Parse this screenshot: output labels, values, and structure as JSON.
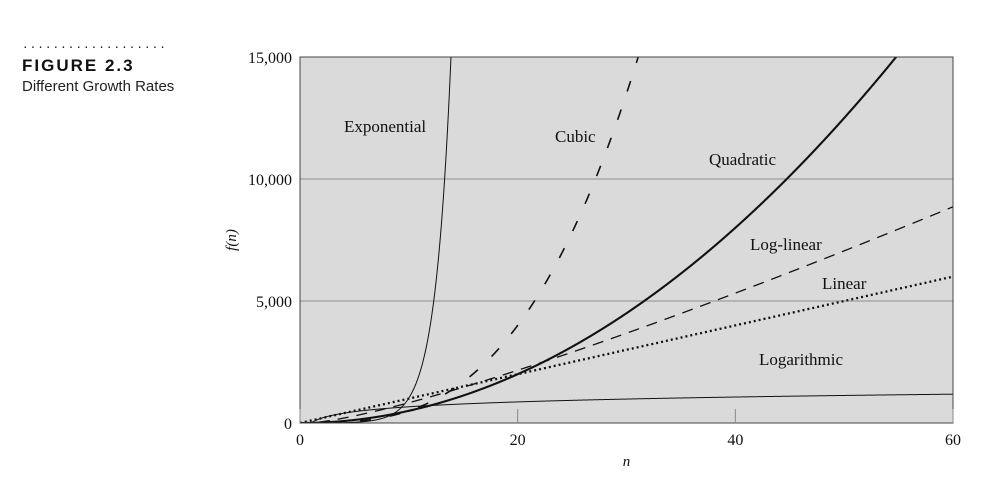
{
  "figure": {
    "dots": "...................",
    "label": "FIGURE 2.3",
    "title": "Different Growth Rates"
  },
  "chart_data": {
    "type": "line",
    "xlabel": "n",
    "ylabel": "f(n)",
    "xlim": [
      0,
      60
    ],
    "ylim": [
      0,
      15000
    ],
    "x_ticks": [
      "0",
      "20",
      "40",
      "60"
    ],
    "y_ticks": [
      "0",
      "5,000",
      "10,000",
      "15,000"
    ],
    "grid": "horizontal",
    "background": "#dadada",
    "series": [
      {
        "name": "Exponential",
        "function": "2^n",
        "style": "solid-thin"
      },
      {
        "name": "Cubic",
        "function": "n^3/2",
        "style": "long-dash"
      },
      {
        "name": "Quadratic",
        "function": "5n^2",
        "style": "solid-thick"
      },
      {
        "name": "Log-linear",
        "function": "25 n log2 n",
        "style": "dash"
      },
      {
        "name": "Linear",
        "function": "100n",
        "style": "dotted"
      },
      {
        "name": "Logarithmic",
        "function": "200 log2 n",
        "style": "solid-thin"
      }
    ]
  }
}
